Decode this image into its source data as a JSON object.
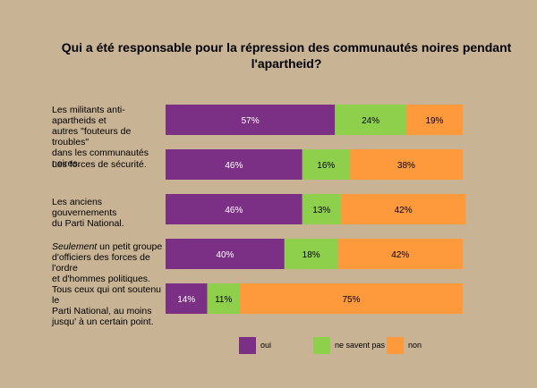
{
  "chart_data": {
    "type": "bar",
    "orientation": "horizontal",
    "stacked": true,
    "title": "Qui a été responsable pour la répression des communautés noires pendant l'apartheid?",
    "categories": [
      {
        "lines": [
          {
            "text": "Les militants anti-apartheids et"
          },
          {
            "text": "autres \"fouteurs de troubles\""
          },
          {
            "text": "dans les communautés noires."
          }
        ]
      },
      {
        "lines": [
          {
            "text": "Les forces de sécurité."
          }
        ]
      },
      {
        "lines": [
          {
            "text": "Les anciens gouvernements"
          },
          {
            "text": "du Parti National."
          }
        ]
      },
      {
        "lines": [
          {
            "em": "Seulement",
            "text": " un petit groupe"
          },
          {
            "text": "d'officiers des forces de l'ordre"
          },
          {
            "text": "et d'hommes politiques."
          }
        ]
      },
      {
        "lines": [
          {
            "text": "Tous ceux qui ont soutenu le"
          },
          {
            "text": "Parti National, au moins"
          },
          {
            "text": "jusqu' à un certain point."
          }
        ]
      }
    ],
    "series": [
      {
        "name": "oui",
        "color": "#7b2f85",
        "values": [
          57,
          46,
          46,
          40,
          14
        ],
        "labels": [
          "57%",
          "46%",
          "46%",
          "40%",
          "14%"
        ]
      },
      {
        "name": "ne savent pas",
        "color": "#8ed04c",
        "values": [
          24,
          16,
          13,
          18,
          11
        ],
        "labels": [
          "24%",
          "16%",
          "13%",
          "18%",
          "11%"
        ]
      },
      {
        "name": "non",
        "color": "#ff9a3c",
        "values": [
          19,
          38,
          42,
          42,
          75
        ],
        "labels": [
          "19%",
          "38%",
          "42%",
          "42%",
          "75%"
        ]
      }
    ],
    "xlim": [
      0,
      100
    ],
    "legend_position": "bottom"
  }
}
